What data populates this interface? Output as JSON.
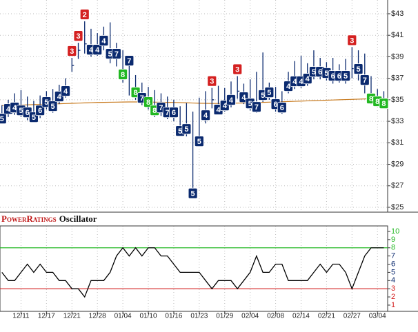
{
  "chart_data": {
    "type": "ohlc",
    "xlim": [
      -0.3,
      60.6
    ],
    "xticks": [
      {
        "value": 3,
        "label": "12/11"
      },
      {
        "value": 7,
        "label": "12/17"
      },
      {
        "value": 11,
        "label": "12/21"
      },
      {
        "value": 15,
        "label": "12/28"
      },
      {
        "value": 19,
        "label": "01/04"
      },
      {
        "value": 23,
        "label": "01/10"
      },
      {
        "value": 27,
        "label": "01/16"
      },
      {
        "value": 31,
        "label": "01/23"
      },
      {
        "value": 35,
        "label": "01/29"
      },
      {
        "value": 39,
        "label": "02/04"
      },
      {
        "value": 43,
        "label": "02/08"
      },
      {
        "value": 47,
        "label": "02/14"
      },
      {
        "value": 51,
        "label": "02/21"
      },
      {
        "value": 55,
        "label": "02/27"
      },
      {
        "value": 59,
        "label": "03/04"
      }
    ],
    "ylim": [
      24.55,
      44.28
    ],
    "yticks": [
      {
        "value": 25,
        "label": "$25"
      },
      {
        "value": 27,
        "label": "$27"
      },
      {
        "value": 29,
        "label": "$29"
      },
      {
        "value": 31,
        "label": "$31"
      },
      {
        "value": 33,
        "label": "$33"
      },
      {
        "value": 35,
        "label": "$35"
      },
      {
        "value": 37,
        "label": "$37"
      },
      {
        "value": 39,
        "label": "$39"
      },
      {
        "value": 41,
        "label": "$41"
      },
      {
        "value": 43,
        "label": "$43"
      }
    ],
    "grid": true,
    "bar_color": "#0b2a6f",
    "ma_color": "#c87a1e",
    "colors": {
      "high": "#22b822",
      "mid": "#0b2a6f",
      "low": "#d42020"
    },
    "high": [
      34.5,
      35.0,
      35.6,
      35.9,
      35.3,
      34.9,
      35.4,
      35.8,
      36.0,
      36.4,
      37.0,
      38.9,
      40.3,
      42.3,
      41.6,
      41.2,
      41.8,
      42.2,
      40.3,
      39.6,
      39.0,
      37.3,
      36.6,
      36.2,
      35.9,
      35.6,
      35.3,
      35.0,
      34.4,
      34.7,
      33.9,
      35.2,
      35.8,
      36.1,
      36.3,
      36.1,
      36.7,
      37.2,
      36.5,
      36.9,
      37.6,
      39.4,
      36.6,
      36.2,
      35.8,
      37.6,
      38.6,
      39.1,
      38.4,
      39.6,
      38.9,
      38.5,
      38.9,
      38.3,
      38.8,
      39.9,
      39.6,
      39.3,
      37.2,
      36.0,
      35.8
    ],
    "low": [
      32.8,
      33.4,
      33.6,
      33.4,
      33.1,
      32.9,
      33.3,
      34.1,
      33.8,
      34.6,
      35.2,
      37.6,
      38.8,
      39.3,
      39.0,
      39.1,
      39.6,
      38.4,
      38.1,
      36.6,
      35.4,
      35.0,
      34.5,
      34.1,
      33.4,
      33.5,
      33.2,
      33.0,
      31.8,
      31.6,
      26.0,
      30.8,
      32.8,
      34.2,
      33.6,
      33.9,
      34.3,
      35.1,
      34.6,
      34.0,
      33.8,
      34.8,
      35.0,
      33.9,
      33.7,
      35.6,
      36.0,
      36.1,
      36.3,
      36.9,
      36.9,
      36.8,
      36.5,
      36.6,
      36.5,
      37.0,
      36.8,
      35.6,
      34.6,
      34.4,
      34.2
    ],
    "close": [
      33.25,
      34.15,
      34.28,
      34.02,
      33.83,
      33.38,
      34.02,
      34.79,
      34.41,
      35.31,
      35.82,
      38.2,
      39.6,
      40.2,
      39.66,
      39.66,
      40.5,
      39.28,
      39.28,
      37.36,
      38.64,
      35.69,
      35.18,
      34.79,
      34.02,
      34.28,
      33.83,
      33.83,
      32.1,
      32.29,
      26.3,
      31.14,
      33.57,
      35.0,
      34.09,
      34.47,
      34.99,
      35.8,
      35.24,
      34.66,
      34.34,
      35.44,
      35.69,
      34.6,
      34.28,
      36.27,
      36.72,
      36.72,
      36.97,
      37.61,
      37.61,
      37.49,
      37.23,
      37.23,
      37.23,
      37.9,
      37.87,
      36.84,
      35.12,
      34.86,
      34.66
    ],
    "ma": [
      34.45,
      34.47,
      34.49,
      34.51,
      34.53,
      34.55,
      34.57,
      34.59,
      34.61,
      34.63,
      34.65,
      34.67,
      34.69,
      34.71,
      34.73,
      34.75,
      34.76,
      34.77,
      34.78,
      34.79,
      34.8,
      34.8,
      34.8,
      34.79,
      34.78,
      34.77,
      34.76,
      34.75,
      34.74,
      34.72,
      34.7,
      34.68,
      34.67,
      34.66,
      34.66,
      34.67,
      34.68,
      34.69,
      34.7,
      34.72,
      34.74,
      34.76,
      34.78,
      34.8,
      34.82,
      34.84,
      34.86,
      34.88,
      34.9,
      34.92,
      34.94,
      34.96,
      34.98,
      35.0,
      35.02,
      35.04,
      35.06,
      35.08,
      35.1,
      35.11,
      35.12
    ],
    "ratings": [
      5,
      4,
      4,
      5,
      6,
      5,
      6,
      5,
      5,
      4,
      4,
      3,
      3,
      2,
      4,
      4,
      4,
      5,
      7,
      8,
      7,
      8,
      7,
      8,
      8,
      7,
      7,
      6,
      5,
      5,
      5,
      5,
      4,
      3,
      4,
      4,
      4,
      3,
      4,
      5,
      7,
      5,
      5,
      6,
      6,
      4,
      4,
      4,
      4,
      5,
      6,
      5,
      6,
      6,
      5,
      3,
      5,
      7,
      8,
      8,
      8
    ],
    "oscillator": {
      "brand": "PowerRatings",
      "title": "Oscillator",
      "ylim": [
        0.24,
        10.67
      ],
      "yticks": [
        1,
        2,
        3,
        4,
        5,
        6,
        7,
        8,
        9,
        10
      ],
      "upper_line": 8,
      "lower_line": 3,
      "line_color": "#000"
    }
  }
}
